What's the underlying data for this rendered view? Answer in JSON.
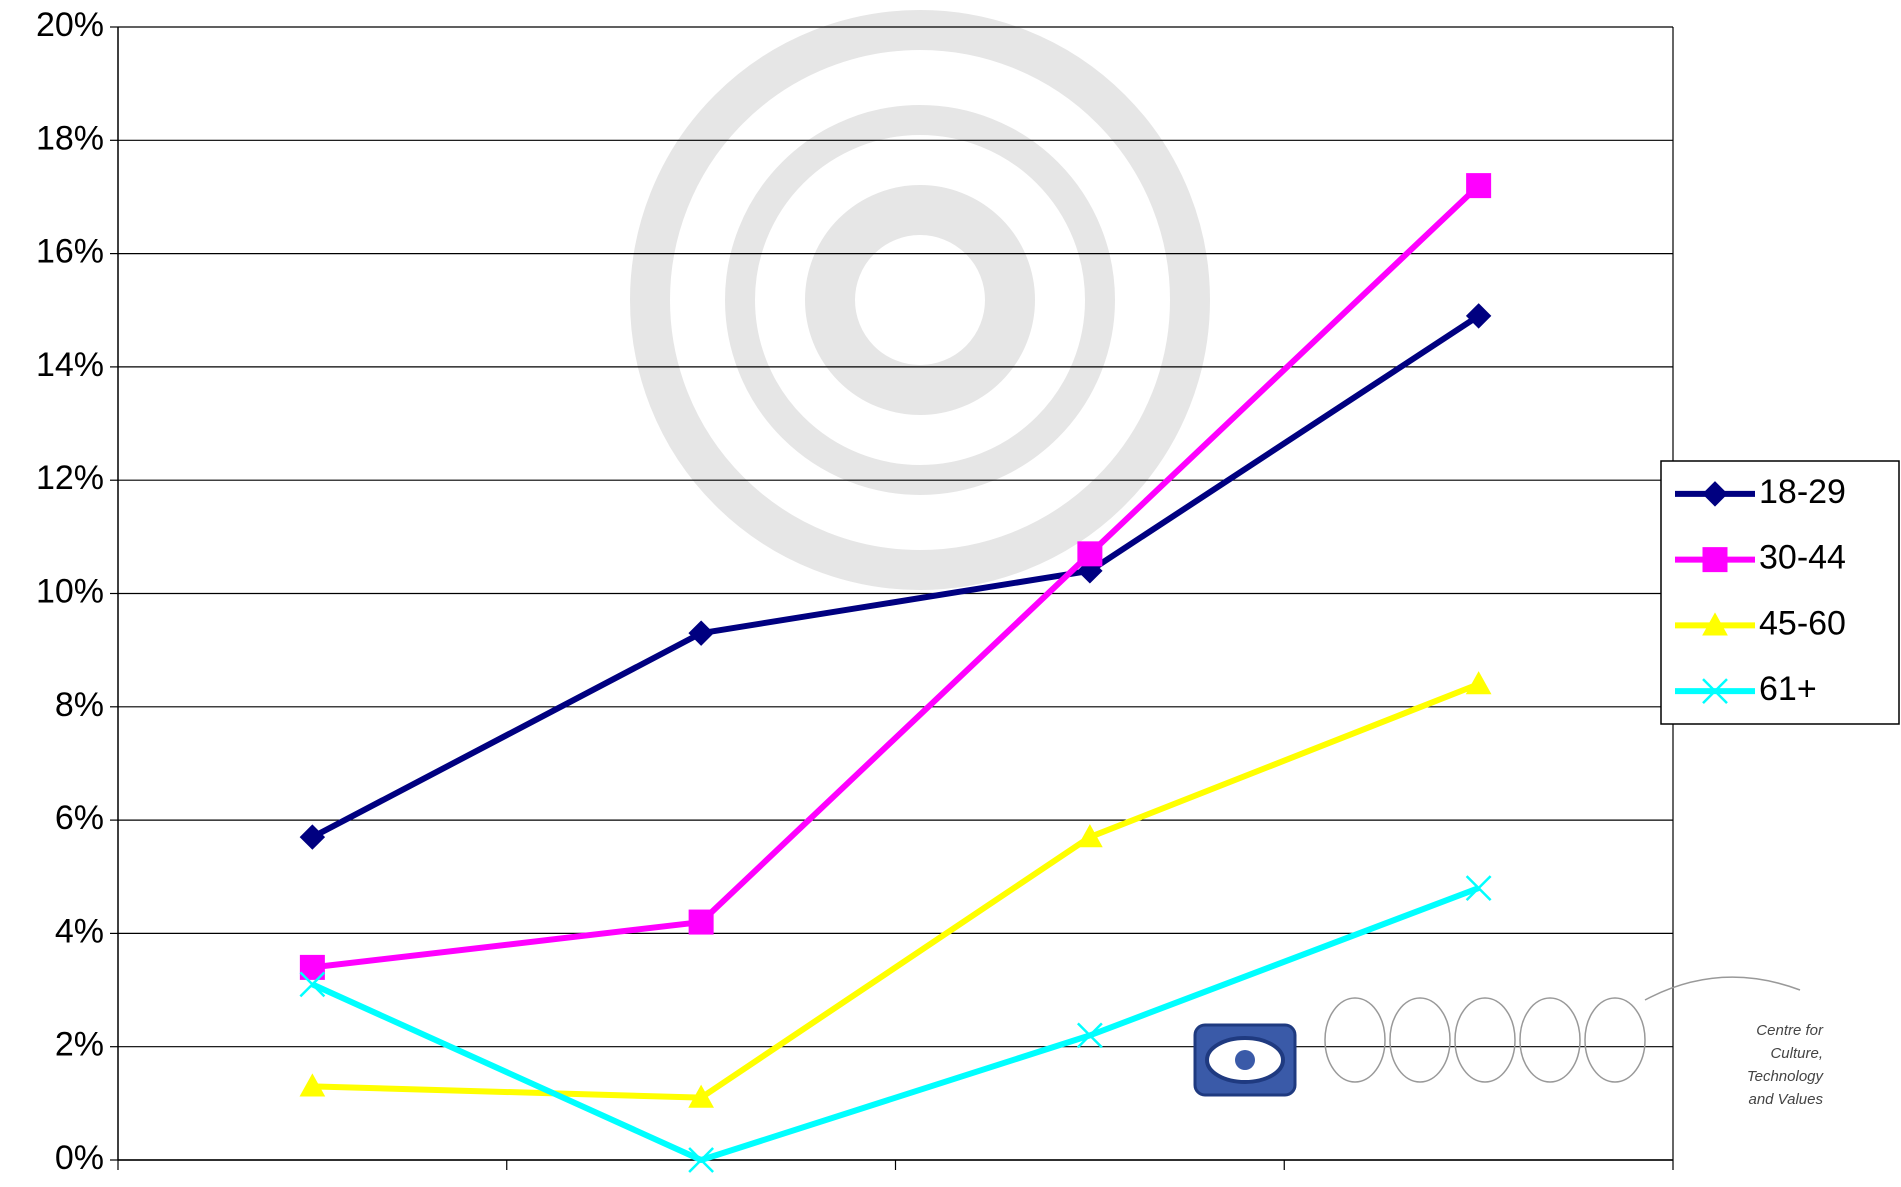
{
  "chart_data": {
    "type": "line",
    "categories": [
      null,
      null,
      null,
      null
    ],
    "series": [
      {
        "name": "18-29",
        "color": "#000080",
        "marker": "diamond",
        "values": [
          5.7,
          9.3,
          10.4,
          14.9
        ]
      },
      {
        "name": "30-44",
        "color": "#ff00ff",
        "marker": "square",
        "values": [
          3.4,
          4.2,
          10.7,
          17.2
        ]
      },
      {
        "name": "45-60",
        "color": "#ffff00",
        "marker": "triangle",
        "values": [
          1.3,
          1.1,
          5.7,
          8.4
        ]
      },
      {
        "name": "61+",
        "color": "#00ffff",
        "marker": "x",
        "values": [
          3.1,
          0,
          2.2,
          4.8
        ]
      }
    ],
    "ylim": [
      0,
      20
    ],
    "yticks": [
      {
        "value": 0,
        "label": "0%"
      },
      {
        "value": 2,
        "label": "2%"
      },
      {
        "value": 4,
        "label": "4%"
      },
      {
        "value": 6,
        "label": "6%"
      },
      {
        "value": 8,
        "label": "8%"
      },
      {
        "value": 10,
        "label": "10%"
      },
      {
        "value": 12,
        "label": "12%"
      },
      {
        "value": 14,
        "label": "14%"
      },
      {
        "value": 16,
        "label": "16%"
      },
      {
        "value": 18,
        "label": "18%"
      },
      {
        "value": 20,
        "label": "20%"
      }
    ],
    "grid": true,
    "legend": "right",
    "annotations": [
      "Centre for",
      "Culture,",
      "Technology",
      "and Values"
    ]
  }
}
